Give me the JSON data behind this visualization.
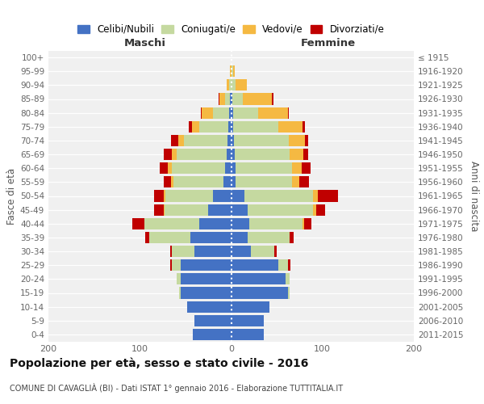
{
  "age_groups": [
    "0-4",
    "5-9",
    "10-14",
    "15-19",
    "20-24",
    "25-29",
    "30-34",
    "35-39",
    "40-44",
    "45-49",
    "50-54",
    "55-59",
    "60-64",
    "65-69",
    "70-74",
    "75-79",
    "80-84",
    "85-89",
    "90-94",
    "95-99",
    "100+"
  ],
  "birth_years": [
    "2011-2015",
    "2006-2010",
    "2001-2005",
    "1996-2000",
    "1991-1995",
    "1986-1990",
    "1981-1985",
    "1976-1980",
    "1971-1975",
    "1966-1970",
    "1961-1965",
    "1956-1960",
    "1951-1955",
    "1946-1950",
    "1941-1945",
    "1936-1940",
    "1931-1935",
    "1926-1930",
    "1921-1925",
    "1916-1920",
    "≤ 1915"
  ],
  "males_celibi": [
    42,
    40,
    48,
    55,
    55,
    55,
    40,
    45,
    35,
    25,
    20,
    8,
    7,
    5,
    4,
    3,
    2,
    1,
    0,
    0,
    0
  ],
  "males_coniugati": [
    0,
    0,
    0,
    2,
    5,
    10,
    25,
    45,
    60,
    48,
    52,
    55,
    58,
    55,
    48,
    32,
    18,
    6,
    2,
    0,
    0
  ],
  "males_vedovi": [
    0,
    0,
    0,
    0,
    0,
    0,
    0,
    0,
    0,
    1,
    2,
    3,
    4,
    5,
    6,
    8,
    12,
    6,
    3,
    1,
    0
  ],
  "males_divorziati": [
    0,
    0,
    0,
    0,
    0,
    2,
    2,
    4,
    13,
    10,
    10,
    8,
    9,
    9,
    8,
    3,
    1,
    1,
    0,
    0,
    0
  ],
  "fem_nubili": [
    36,
    36,
    42,
    62,
    60,
    52,
    22,
    18,
    20,
    18,
    15,
    5,
    5,
    4,
    3,
    2,
    2,
    1,
    0,
    0,
    0
  ],
  "fem_coniugate": [
    0,
    0,
    0,
    2,
    4,
    10,
    25,
    46,
    58,
    72,
    75,
    62,
    62,
    60,
    60,
    50,
    28,
    12,
    5,
    2,
    0
  ],
  "fem_vedove": [
    0,
    0,
    0,
    0,
    0,
    0,
    0,
    0,
    2,
    3,
    5,
    8,
    10,
    15,
    18,
    26,
    32,
    32,
    12,
    2,
    0
  ],
  "fem_divorziate": [
    0,
    0,
    0,
    0,
    0,
    3,
    3,
    4,
    8,
    10,
    22,
    10,
    10,
    5,
    3,
    3,
    1,
    1,
    0,
    0,
    0
  ],
  "color_celibi": "#4472c4",
  "color_coniugati": "#c5d9a0",
  "color_vedovi": "#f5b942",
  "color_divorziati": "#c00000",
  "title": "Popolazione per età, sesso e stato civile - 2016",
  "subtitle": "COMUNE DI CAVAGLIÀ (BI) - Dati ISTAT 1° gennaio 2016 - Elaborazione TUTTITALIA.IT",
  "ylabel_left": "Fasce di età",
  "ylabel_right": "Anni di nascita",
  "label_maschi": "Maschi",
  "label_femmine": "Femmine",
  "legend_labels": [
    "Celibi/Nubili",
    "Coniugati/e",
    "Vedovi/e",
    "Divorziati/e"
  ],
  "xlim": 200
}
